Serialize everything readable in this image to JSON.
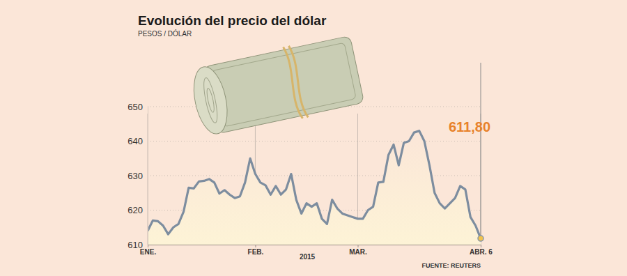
{
  "chart_data": {
    "type": "line",
    "title": "Evolución del precio del dólar",
    "subtitle": "PESOS / DÓLAR",
    "x_label": "2015",
    "source": "FUENTE: REUTERS",
    "annotation": "611,80",
    "color": "#7d8d9f",
    "grid": true,
    "categories": [
      "ENE.",
      null,
      null,
      null,
      null,
      null,
      null,
      null,
      null,
      null,
      null,
      null,
      null,
      null,
      null,
      null,
      null,
      null,
      null,
      null,
      null,
      "FEB.",
      null,
      null,
      null,
      null,
      null,
      null,
      null,
      null,
      null,
      null,
      null,
      null,
      null,
      null,
      null,
      null,
      null,
      null,
      null,
      "MAR.",
      null,
      null,
      null,
      null,
      null,
      null,
      null,
      null,
      null,
      null,
      null,
      null,
      null,
      null,
      null,
      null,
      null,
      null,
      null,
      null,
      null,
      null,
      null,
      "ABR. 6"
    ],
    "values": [
      614,
      617,
      616.8,
      615.5,
      613,
      615,
      616,
      619.5,
      626.5,
      626.3,
      628.3,
      628.5,
      629,
      628,
      624.8,
      625.8,
      624.5,
      623.5,
      624,
      628,
      635,
      630.5,
      628,
      627.2,
      624.5,
      627,
      624.5,
      626,
      630.5,
      623,
      619,
      622,
      621,
      622,
      617.5,
      616,
      623,
      620.5,
      619,
      618.5,
      618,
      617.5,
      617.5,
      620,
      621,
      628,
      628.2,
      636,
      639,
      633,
      639.5,
      640,
      642.5,
      643,
      640,
      633,
      625,
      622,
      620.5,
      622,
      623.5,
      627,
      626,
      618,
      615.5,
      611.8
    ],
    "ylim": [
      610,
      650
    ],
    "yticks": [
      610,
      620,
      630,
      640,
      650
    ]
  }
}
